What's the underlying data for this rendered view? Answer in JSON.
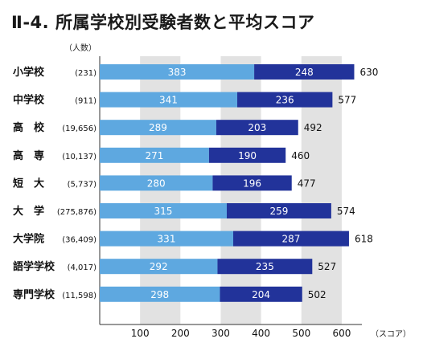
{
  "title": "Ⅱ-4. 所属学校別受験者数と平均スコア",
  "chart_data": {
    "type": "bar",
    "stacked": true,
    "orientation": "horizontal",
    "title": "Ⅱ-4. 所属学校別受験者数と平均スコア",
    "y_unit_label": "（人数）",
    "x_unit_label": "（スコア）",
    "xlim": [
      0,
      650
    ],
    "xticks": [
      100,
      200,
      300,
      400,
      500,
      600
    ],
    "grid": "alternating vertical bands",
    "colors": {
      "part1": "#5ea8e0",
      "part2": "#22339a",
      "band": "#e2e2e2"
    },
    "categories": [
      {
        "label": "小学校",
        "count": "(231)"
      },
      {
        "label": "中学校",
        "count": "(911)"
      },
      {
        "label": "高　校",
        "count": "(19,656)"
      },
      {
        "label": "高　専",
        "count": "(10,137)"
      },
      {
        "label": "短　大",
        "count": "(5,737)"
      },
      {
        "label": "大　学",
        "count": "(275,876)"
      },
      {
        "label": "大学院",
        "count": "(36,409)"
      },
      {
        "label": "語学学校",
        "count": "(4,017)"
      },
      {
        "label": "専門学校",
        "count": "(11,598)"
      }
    ],
    "series": [
      {
        "values": [
          383,
          341,
          289,
          271,
          280,
          315,
          331,
          292,
          298
        ]
      },
      {
        "values": [
          248,
          236,
          203,
          190,
          196,
          259,
          287,
          235,
          204
        ]
      }
    ],
    "totals": [
      630,
      577,
      492,
      460,
      477,
      574,
      618,
      527,
      502
    ]
  }
}
